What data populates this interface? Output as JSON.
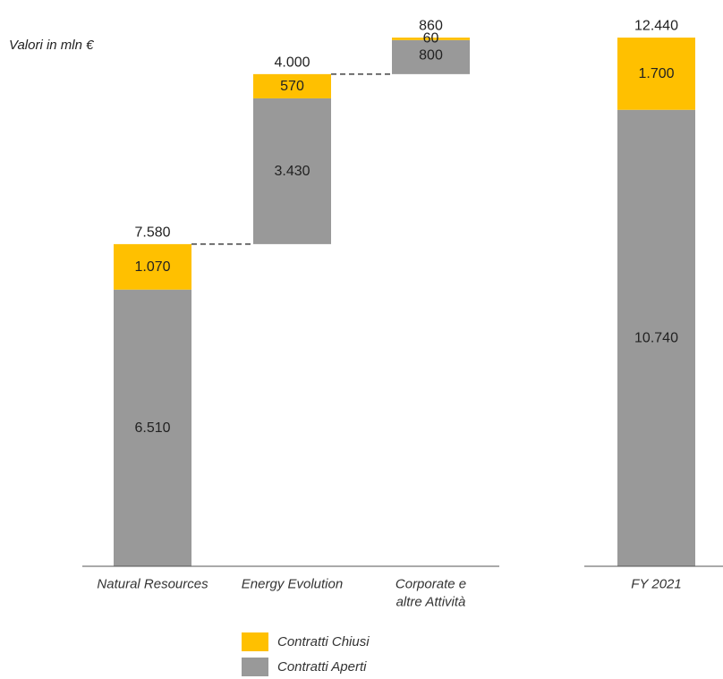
{
  "unit_label": "Valori in mln €",
  "colors": {
    "chiusi": "#FFC000",
    "aperti": "#999999"
  },
  "legend": [
    {
      "key": "chiusi",
      "label": "Contratti Chiusi"
    },
    {
      "key": "aperti",
      "label": "Contratti Aperti"
    }
  ],
  "chart_data": {
    "type": "bar",
    "subtype": "stacked-waterfall",
    "categories": [
      "Natural Resources",
      "Energy Evolution",
      "Corporate e altre Attività",
      "FY 2021"
    ],
    "category_lines": [
      [
        "Natural Resources"
      ],
      [
        "Energy Evolution"
      ],
      [
        "Corporate e",
        "altre Attività"
      ],
      [
        "FY 2021"
      ]
    ],
    "series": [
      {
        "name": "Contratti Aperti",
        "key": "aperti",
        "values": [
          6510,
          3430,
          800,
          10740
        ],
        "labels": [
          "6.510",
          "3.430",
          "800",
          "10.740"
        ]
      },
      {
        "name": "Contratti Chiusi",
        "key": "chiusi",
        "values": [
          1070,
          570,
          60,
          1700
        ],
        "labels": [
          "1.070",
          "570",
          "60",
          "1.700"
        ]
      }
    ],
    "bases": [
      0,
      7580,
      11580,
      0
    ],
    "totals": [
      7580,
      4000,
      860,
      12440
    ],
    "total_labels": [
      "7.580",
      "4.000",
      "860",
      "12.440"
    ],
    "ylim": [
      0,
      12440
    ],
    "connectors": true,
    "grid": false,
    "legend_position": "bottom"
  }
}
